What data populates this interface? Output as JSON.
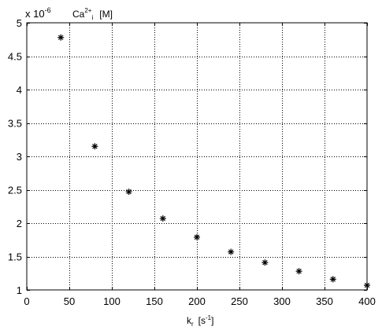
{
  "chart_data": {
    "type": "scatter",
    "title": "",
    "xlabel": "k_r [s^-1]",
    "ylabel": "Ca2+i [M]",
    "y_multiplier_label": "x 10",
    "y_multiplier_exponent": "-6",
    "ylabel_parts": {
      "base": "Ca",
      "sup": "2+",
      "sub": "i",
      "unit": "[M]"
    },
    "xlabel_parts": {
      "base": "k",
      "sub": "r",
      "unit_open": "[s",
      "unit_sup": "-1",
      "unit_close": "]"
    },
    "xlim": [
      0,
      400
    ],
    "ylim": [
      1,
      5
    ],
    "grid": true,
    "grid_style": "dotted",
    "marker": "asterisk",
    "marker_color": "#000000",
    "xticks": [
      0,
      50,
      100,
      150,
      200,
      250,
      300,
      350,
      400
    ],
    "yticks": [
      1,
      1.5,
      2,
      2.5,
      3,
      3.5,
      4,
      4.5,
      5
    ],
    "xtick_labels": [
      "0",
      "50",
      "100",
      "150",
      "200",
      "250",
      "300",
      "350",
      "400"
    ],
    "ytick_labels": [
      "1",
      "1.5",
      "2",
      "2.5",
      "3",
      "3.5",
      "4",
      "4.5",
      "5"
    ],
    "series": [
      {
        "x": [
          40,
          80,
          120,
          160,
          200,
          240,
          280,
          320,
          360,
          400
        ],
        "y": [
          4.78,
          3.15,
          2.47,
          2.07,
          1.79,
          1.57,
          1.41,
          1.28,
          1.16,
          1.07
        ]
      }
    ]
  }
}
